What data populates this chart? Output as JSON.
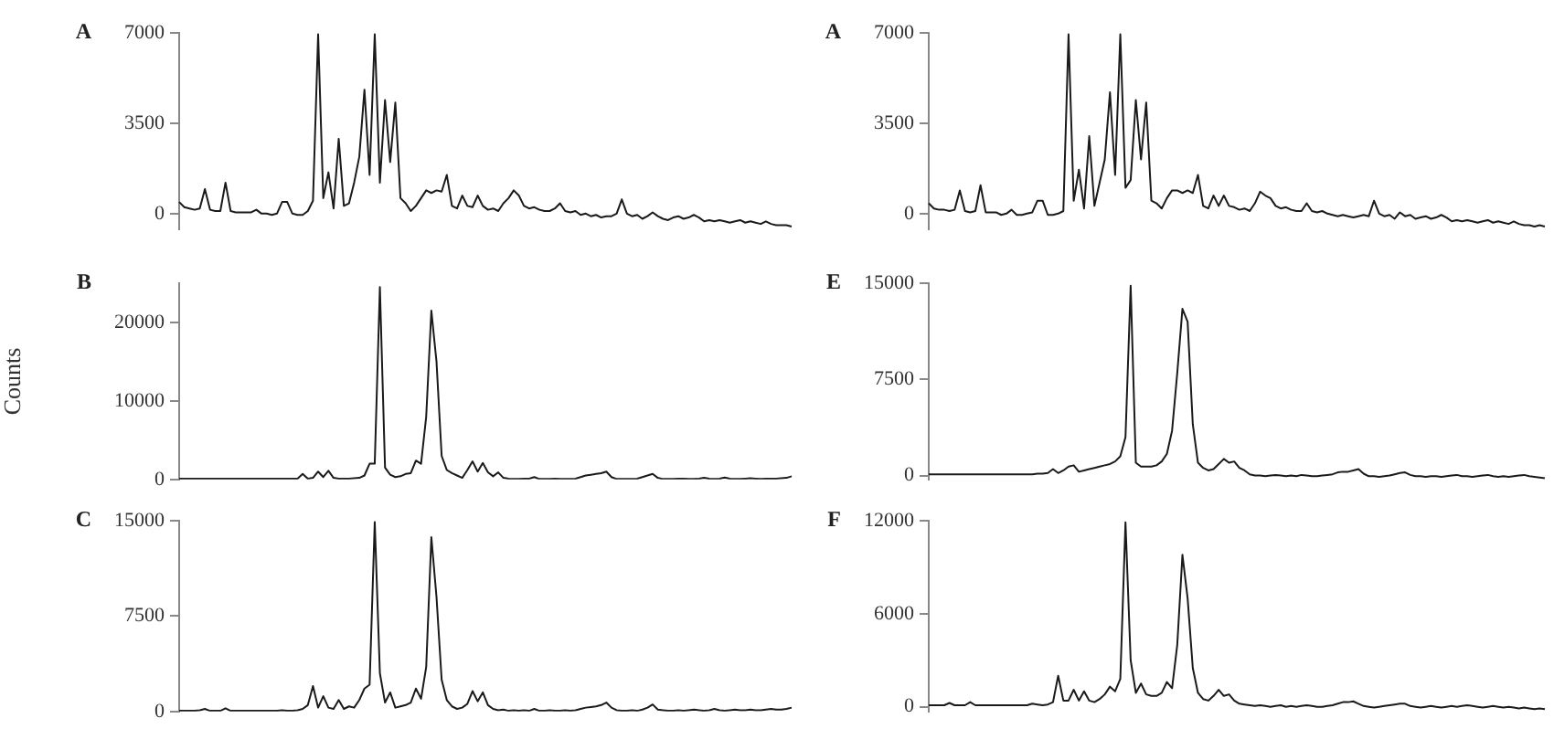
{
  "chart_data": [
    {
      "type": "line",
      "title": "A",
      "tick_labels": "y",
      "grid": false,
      "legend": false,
      "marker": "none",
      "line_style": "solid",
      "ylim": [
        -600,
        7000
      ],
      "yticks": [
        0,
        3500,
        7000
      ],
      "color": "#1a1a1a",
      "categories": [
        null,
        null,
        null,
        null,
        null,
        null,
        null,
        null,
        null,
        null,
        null,
        null,
        null,
        null,
        null,
        null,
        null,
        null,
        null,
        null,
        null,
        null,
        null,
        null,
        null,
        null,
        null,
        null,
        null,
        null,
        null,
        null,
        null,
        null,
        null,
        null,
        null,
        null,
        null,
        null,
        null,
        null,
        null,
        null,
        null,
        null,
        null,
        null,
        null,
        null,
        null,
        null,
        null,
        null,
        null,
        null,
        null,
        null,
        null,
        null,
        null,
        null,
        null,
        null,
        null,
        null,
        null,
        null,
        null,
        null,
        null,
        null,
        null,
        null,
        null,
        null,
        null,
        null,
        null,
        null,
        null,
        null,
        null,
        null,
        null,
        null,
        null,
        null,
        null,
        null,
        null,
        null,
        null,
        null,
        null,
        null,
        null,
        null,
        null,
        null,
        null,
        null,
        null,
        null,
        null,
        null,
        null,
        null,
        null,
        null,
        null,
        null,
        null,
        null,
        null,
        null,
        null,
        null,
        null,
        null
      ],
      "values": [
        450,
        250,
        200,
        150,
        200,
        950,
        150,
        100,
        100,
        1200,
        100,
        50,
        50,
        50,
        50,
        150,
        0,
        0,
        -50,
        0,
        450,
        450,
        0,
        -50,
        -50,
        100,
        500,
        6950,
        600,
        1600,
        200,
        2900,
        300,
        400,
        1200,
        2200,
        4800,
        1500,
        6950,
        1200,
        4400,
        2000,
        4300,
        600,
        400,
        100,
        300,
        600,
        900,
        800,
        900,
        850,
        1500,
        300,
        200,
        700,
        300,
        250,
        700,
        300,
        150,
        200,
        100,
        400,
        600,
        900,
        700,
        300,
        200,
        250,
        150,
        100,
        100,
        200,
        400,
        100,
        50,
        100,
        -50,
        0,
        -100,
        -50,
        -150,
        -100,
        -100,
        0,
        550,
        0,
        -100,
        -50,
        -200,
        -100,
        50,
        -100,
        -200,
        -250,
        -150,
        -100,
        -200,
        -150,
        -50,
        -150,
        -300,
        -250,
        -300,
        -250,
        -300,
        -350,
        -300,
        -250,
        -350,
        -300,
        -350,
        -400,
        -300,
        -400,
        -450,
        -450,
        -450,
        -500
      ]
    },
    {
      "type": "line",
      "title": "A",
      "tick_labels": "y",
      "grid": false,
      "legend": false,
      "marker": "none",
      "line_style": "solid",
      "ylim": [
        -600,
        7000
      ],
      "yticks": [
        0,
        3500,
        7000
      ],
      "color": "#1a1a1a",
      "categories": [
        null,
        null,
        null,
        null,
        null,
        null,
        null,
        null,
        null,
        null,
        null,
        null,
        null,
        null,
        null,
        null,
        null,
        null,
        null,
        null,
        null,
        null,
        null,
        null,
        null,
        null,
        null,
        null,
        null,
        null,
        null,
        null,
        null,
        null,
        null,
        null,
        null,
        null,
        null,
        null,
        null,
        null,
        null,
        null,
        null,
        null,
        null,
        null,
        null,
        null,
        null,
        null,
        null,
        null,
        null,
        null,
        null,
        null,
        null,
        null,
        null,
        null,
        null,
        null,
        null,
        null,
        null,
        null,
        null,
        null,
        null,
        null,
        null,
        null,
        null,
        null,
        null,
        null,
        null,
        null,
        null,
        null,
        null,
        null,
        null,
        null,
        null,
        null,
        null,
        null,
        null,
        null,
        null,
        null,
        null,
        null,
        null,
        null,
        null,
        null,
        null,
        null,
        null,
        null,
        null,
        null,
        null,
        null,
        null,
        null,
        null,
        null,
        null,
        null,
        null,
        null,
        null,
        null,
        null,
        null
      ],
      "values": [
        400,
        200,
        150,
        150,
        100,
        150,
        900,
        100,
        50,
        100,
        1100,
        50,
        50,
        50,
        -50,
        0,
        150,
        -50,
        -50,
        0,
        50,
        500,
        500,
        -50,
        -50,
        0,
        100,
        6950,
        500,
        1700,
        200,
        3000,
        300,
        1200,
        2100,
        4700,
        1500,
        6950,
        1000,
        1300,
        4400,
        2100,
        4300,
        500,
        400,
        200,
        600,
        900,
        900,
        800,
        900,
        800,
        1500,
        300,
        200,
        700,
        300,
        700,
        300,
        250,
        150,
        200,
        100,
        400,
        850,
        700,
        600,
        300,
        200,
        250,
        150,
        100,
        100,
        400,
        100,
        50,
        100,
        0,
        -50,
        -100,
        -50,
        -100,
        -150,
        -100,
        -50,
        -100,
        500,
        0,
        -100,
        -50,
        -200,
        50,
        -100,
        -50,
        -200,
        -150,
        -100,
        -200,
        -150,
        -50,
        -150,
        -300,
        -250,
        -300,
        -250,
        -300,
        -350,
        -300,
        -250,
        -350,
        -300,
        -350,
        -400,
        -300,
        -400,
        -450,
        -450,
        -500,
        -450,
        -500
      ]
    },
    {
      "type": "line",
      "title": "B",
      "ylabel": "Counts",
      "tick_labels": "y",
      "grid": false,
      "legend": false,
      "marker": "none",
      "line_style": "solid",
      "ylim": [
        0,
        25000
      ],
      "yticks": [
        0,
        10000,
        20000
      ],
      "color": "#1a1a1a",
      "categories": [
        null,
        null,
        null,
        null,
        null,
        null,
        null,
        null,
        null,
        null,
        null,
        null,
        null,
        null,
        null,
        null,
        null,
        null,
        null,
        null,
        null,
        null,
        null,
        null,
        null,
        null,
        null,
        null,
        null,
        null,
        null,
        null,
        null,
        null,
        null,
        null,
        null,
        null,
        null,
        null,
        null,
        null,
        null,
        null,
        null,
        null,
        null,
        null,
        null,
        null,
        null,
        null,
        null,
        null,
        null,
        null,
        null,
        null,
        null,
        null,
        null,
        null,
        null,
        null,
        null,
        null,
        null,
        null,
        null,
        null,
        null,
        null,
        null,
        null,
        null,
        null,
        null,
        null,
        null,
        null,
        null,
        null,
        null,
        null,
        null,
        null,
        null,
        null,
        null,
        null,
        null,
        null,
        null,
        null,
        null,
        null,
        null,
        null,
        null,
        null,
        null,
        null,
        null,
        null,
        null,
        null,
        null,
        null,
        null,
        null,
        null,
        null,
        null,
        null,
        null,
        null,
        null,
        null,
        null,
        null
      ],
      "values": [
        100,
        100,
        100,
        100,
        100,
        100,
        100,
        100,
        100,
        100,
        100,
        100,
        100,
        100,
        100,
        100,
        100,
        100,
        100,
        100,
        100,
        100,
        100,
        100,
        700,
        100,
        200,
        1000,
        300,
        1100,
        200,
        100,
        100,
        100,
        150,
        200,
        500,
        2000,
        2000,
        24500,
        1500,
        600,
        300,
        400,
        700,
        800,
        2400,
        2000,
        8000,
        21500,
        15000,
        3000,
        1200,
        800,
        500,
        200,
        1200,
        2300,
        1000,
        2100,
        900,
        400,
        900,
        200,
        100,
        50,
        50,
        100,
        100,
        300,
        50,
        50,
        50,
        100,
        50,
        50,
        50,
        100,
        300,
        500,
        600,
        700,
        800,
        1000,
        300,
        50,
        50,
        50,
        50,
        100,
        300,
        500,
        700,
        200,
        50,
        50,
        50,
        100,
        100,
        50,
        50,
        100,
        200,
        100,
        50,
        100,
        250,
        100,
        50,
        50,
        100,
        150,
        100,
        50,
        100,
        100,
        100,
        150,
        200,
        400
      ]
    },
    {
      "type": "line",
      "title": "E",
      "tick_labels": "y",
      "grid": false,
      "legend": false,
      "marker": "none",
      "line_style": "solid",
      "ylim": [
        -300,
        15000
      ],
      "yticks": [
        0,
        7500,
        15000
      ],
      "color": "#1a1a1a",
      "categories": [
        null,
        null,
        null,
        null,
        null,
        null,
        null,
        null,
        null,
        null,
        null,
        null,
        null,
        null,
        null,
        null,
        null,
        null,
        null,
        null,
        null,
        null,
        null,
        null,
        null,
        null,
        null,
        null,
        null,
        null,
        null,
        null,
        null,
        null,
        null,
        null,
        null,
        null,
        null,
        null,
        null,
        null,
        null,
        null,
        null,
        null,
        null,
        null,
        null,
        null,
        null,
        null,
        null,
        null,
        null,
        null,
        null,
        null,
        null,
        null,
        null,
        null,
        null,
        null,
        null,
        null,
        null,
        null,
        null,
        null,
        null,
        null,
        null,
        null,
        null,
        null,
        null,
        null,
        null,
        null,
        null,
        null,
        null,
        null,
        null,
        null,
        null,
        null,
        null,
        null,
        null,
        null,
        null,
        null,
        null,
        null,
        null,
        null,
        null,
        null,
        null,
        null,
        null,
        null,
        null,
        null,
        null,
        null,
        null,
        null,
        null,
        null,
        null,
        null,
        null,
        null,
        null,
        null,
        null,
        null
      ],
      "values": [
        100,
        100,
        100,
        100,
        100,
        100,
        100,
        100,
        100,
        100,
        100,
        100,
        100,
        100,
        100,
        100,
        100,
        100,
        100,
        100,
        100,
        150,
        150,
        200,
        500,
        200,
        400,
        700,
        800,
        300,
        400,
        500,
        600,
        700,
        800,
        900,
        1100,
        1500,
        3000,
        14800,
        1000,
        700,
        700,
        700,
        800,
        1100,
        1700,
        3500,
        8000,
        13000,
        12000,
        4000,
        1000,
        600,
        400,
        500,
        900,
        1300,
        1000,
        1100,
        600,
        400,
        100,
        0,
        0,
        -50,
        0,
        50,
        0,
        -50,
        0,
        -50,
        50,
        0,
        -50,
        -50,
        0,
        50,
        100,
        250,
        300,
        300,
        400,
        500,
        150,
        -50,
        -50,
        -100,
        -50,
        0,
        100,
        200,
        250,
        50,
        -50,
        -50,
        -100,
        -50,
        -50,
        -100,
        -50,
        0,
        50,
        -50,
        -50,
        -100,
        -50,
        0,
        50,
        -50,
        -100,
        -50,
        -100,
        -50,
        0,
        50,
        -50,
        -100,
        -150,
        -200
      ]
    },
    {
      "type": "line",
      "title": "C",
      "tick_labels": "y",
      "grid": false,
      "legend": false,
      "marker": "none",
      "line_style": "solid",
      "ylim": [
        0,
        15000
      ],
      "yticks": [
        0,
        7500,
        15000
      ],
      "color": "#1a1a1a",
      "categories": [
        null,
        null,
        null,
        null,
        null,
        null,
        null,
        null,
        null,
        null,
        null,
        null,
        null,
        null,
        null,
        null,
        null,
        null,
        null,
        null,
        null,
        null,
        null,
        null,
        null,
        null,
        null,
        null,
        null,
        null,
        null,
        null,
        null,
        null,
        null,
        null,
        null,
        null,
        null,
        null,
        null,
        null,
        null,
        null,
        null,
        null,
        null,
        null,
        null,
        null,
        null,
        null,
        null,
        null,
        null,
        null,
        null,
        null,
        null,
        null,
        null,
        null,
        null,
        null,
        null,
        null,
        null,
        null,
        null,
        null,
        null,
        null,
        null,
        null,
        null,
        null,
        null,
        null,
        null,
        null,
        null,
        null,
        null,
        null,
        null,
        null,
        null,
        null,
        null,
        null,
        null,
        null,
        null,
        null,
        null,
        null,
        null,
        null,
        null,
        null,
        null,
        null,
        null,
        null,
        null,
        null,
        null,
        null,
        null,
        null,
        null,
        null,
        null,
        null,
        null,
        null,
        null,
        null,
        null,
        null
      ],
      "values": [
        50,
        50,
        50,
        50,
        100,
        200,
        50,
        50,
        50,
        250,
        50,
        50,
        50,
        50,
        50,
        50,
        50,
        50,
        50,
        50,
        100,
        50,
        50,
        100,
        200,
        500,
        2000,
        300,
        1200,
        300,
        200,
        900,
        200,
        400,
        300,
        900,
        1800,
        2100,
        14900,
        3000,
        700,
        1500,
        300,
        400,
        500,
        700,
        1800,
        1000,
        3500,
        13700,
        9000,
        2500,
        900,
        400,
        200,
        300,
        600,
        1600,
        800,
        1500,
        500,
        200,
        100,
        150,
        50,
        100,
        50,
        100,
        50,
        200,
        50,
        50,
        100,
        50,
        50,
        100,
        50,
        100,
        200,
        300,
        350,
        400,
        500,
        700,
        300,
        100,
        50,
        50,
        100,
        50,
        150,
        300,
        550,
        150,
        100,
        50,
        50,
        100,
        50,
        100,
        150,
        100,
        50,
        100,
        200,
        100,
        50,
        100,
        150,
        100,
        100,
        150,
        100,
        100,
        150,
        200,
        150,
        150,
        200,
        300
      ]
    },
    {
      "type": "line",
      "title": "F",
      "tick_labels": "y",
      "grid": false,
      "legend": false,
      "marker": "none",
      "line_style": "solid",
      "ylim": [
        -300,
        12000
      ],
      "yticks": [
        0,
        6000,
        12000
      ],
      "color": "#1a1a1a",
      "categories": [
        null,
        null,
        null,
        null,
        null,
        null,
        null,
        null,
        null,
        null,
        null,
        null,
        null,
        null,
        null,
        null,
        null,
        null,
        null,
        null,
        null,
        null,
        null,
        null,
        null,
        null,
        null,
        null,
        null,
        null,
        null,
        null,
        null,
        null,
        null,
        null,
        null,
        null,
        null,
        null,
        null,
        null,
        null,
        null,
        null,
        null,
        null,
        null,
        null,
        null,
        null,
        null,
        null,
        null,
        null,
        null,
        null,
        null,
        null,
        null,
        null,
        null,
        null,
        null,
        null,
        null,
        null,
        null,
        null,
        null,
        null,
        null,
        null,
        null,
        null,
        null,
        null,
        null,
        null,
        null,
        null,
        null,
        null,
        null,
        null,
        null,
        null,
        null,
        null,
        null,
        null,
        null,
        null,
        null,
        null,
        null,
        null,
        null,
        null,
        null,
        null,
        null,
        null,
        null,
        null,
        null,
        null,
        null,
        null,
        null,
        null,
        null,
        null,
        null,
        null,
        null,
        null,
        null,
        null,
        null
      ],
      "values": [
        100,
        100,
        100,
        100,
        250,
        100,
        100,
        100,
        300,
        100,
        100,
        100,
        100,
        100,
        100,
        100,
        100,
        100,
        100,
        100,
        200,
        150,
        100,
        150,
        300,
        2000,
        400,
        400,
        1100,
        400,
        1000,
        400,
        300,
        500,
        800,
        1300,
        1000,
        1800,
        11900,
        3000,
        900,
        1500,
        800,
        700,
        700,
        900,
        1600,
        1200,
        4000,
        9800,
        7000,
        2500,
        900,
        500,
        400,
        700,
        1100,
        700,
        800,
        400,
        200,
        150,
        100,
        50,
        100,
        50,
        0,
        50,
        100,
        0,
        50,
        0,
        50,
        100,
        50,
        0,
        0,
        50,
        100,
        200,
        300,
        300,
        350,
        200,
        50,
        0,
        -50,
        0,
        50,
        100,
        150,
        200,
        200,
        50,
        0,
        -50,
        0,
        50,
        0,
        -50,
        0,
        50,
        0,
        50,
        100,
        50,
        0,
        -50,
        0,
        50,
        0,
        -50,
        0,
        -50,
        -100,
        -50,
        -100,
        -150,
        -100,
        -150
      ]
    }
  ]
}
